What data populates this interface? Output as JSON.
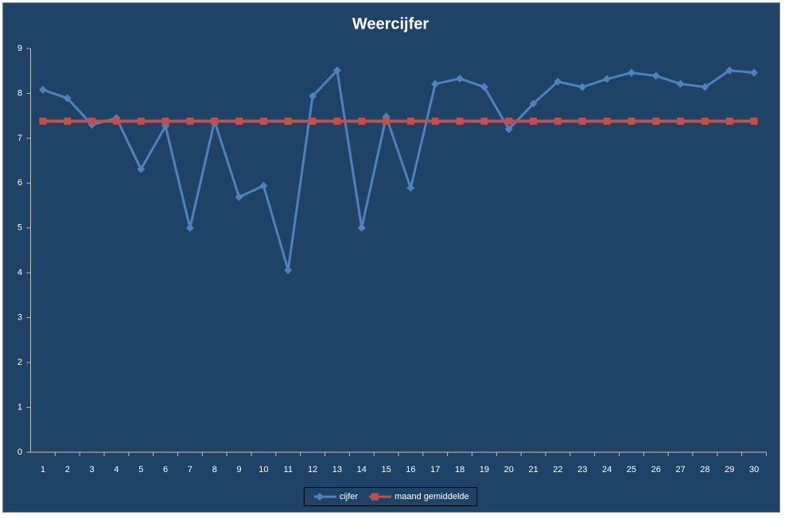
{
  "chart_data": {
    "type": "line",
    "title": "Weercijfer",
    "categories": [
      1,
      2,
      3,
      4,
      5,
      6,
      7,
      8,
      9,
      10,
      11,
      12,
      13,
      14,
      15,
      16,
      17,
      18,
      19,
      20,
      21,
      22,
      23,
      24,
      25,
      26,
      27,
      28,
      29,
      30
    ],
    "series": [
      {
        "name": "cijfer",
        "color": "#4f81bd",
        "marker": "diamond",
        "values": [
          8.08,
          7.89,
          7.3,
          7.45,
          6.31,
          7.27,
          5.0,
          7.38,
          5.69,
          5.94,
          4.06,
          7.94,
          8.51,
          5.0,
          7.48,
          5.89,
          8.21,
          8.33,
          8.14,
          7.2,
          7.77,
          8.26,
          8.14,
          8.32,
          8.46,
          8.39,
          8.21,
          8.14,
          8.51,
          8.46
        ]
      },
      {
        "name": "maand gemiddelde",
        "color": "#c0504d",
        "marker": "square",
        "values": [
          7.38,
          7.38,
          7.38,
          7.38,
          7.38,
          7.38,
          7.38,
          7.38,
          7.38,
          7.38,
          7.38,
          7.38,
          7.38,
          7.38,
          7.38,
          7.38,
          7.38,
          7.38,
          7.38,
          7.38,
          7.38,
          7.38,
          7.38,
          7.38,
          7.38,
          7.38,
          7.38,
          7.38,
          7.38,
          7.38
        ]
      }
    ],
    "ylim": [
      0,
      9
    ],
    "yticks": [
      0,
      1,
      2,
      3,
      4,
      5,
      6,
      7,
      8,
      9
    ],
    "grid": false,
    "legend": "bottom"
  }
}
